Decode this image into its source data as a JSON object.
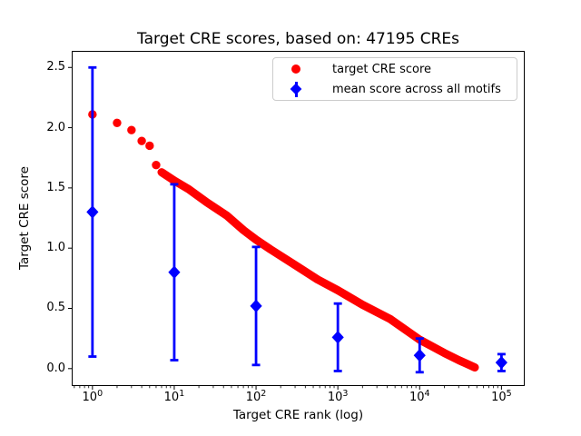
{
  "chart_data": {
    "type": "scatter",
    "title": "Target CRE scores, based on: 47195 CREs",
    "xlabel": "Target CRE rank (log)",
    "ylabel": "Target CRE score",
    "x_scale": "log",
    "grid": false,
    "xlim": [
      0.565,
      190000
    ],
    "ylim": [
      -0.141,
      2.634
    ],
    "x_ticks": [
      {
        "base": "10",
        "exp": "0"
      },
      {
        "base": "10",
        "exp": "1"
      },
      {
        "base": "10",
        "exp": "2"
      },
      {
        "base": "10",
        "exp": "3"
      },
      {
        "base": "10",
        "exp": "4"
      },
      {
        "base": "10",
        "exp": "5"
      }
    ],
    "y_ticks": [
      {
        "value": 0.0,
        "label": "0.0"
      },
      {
        "value": 0.5,
        "label": "0.5"
      },
      {
        "value": 1.0,
        "label": "1.0"
      },
      {
        "value": 1.5,
        "label": "1.5"
      },
      {
        "value": 2.0,
        "label": "2.0"
      },
      {
        "value": 2.5,
        "label": "2.5"
      }
    ],
    "series": [
      {
        "name": "target CRE score",
        "color": "#ff0000",
        "marker": "circle",
        "points": [
          [
            1,
            2.11
          ],
          [
            2,
            2.04
          ],
          [
            3,
            1.98
          ],
          [
            4,
            1.89
          ],
          [
            5,
            1.85
          ],
          [
            6,
            1.69
          ]
        ],
        "dense_band": [
          [
            7,
            1.63
          ],
          [
            10,
            1.56
          ],
          [
            15,
            1.49
          ],
          [
            25,
            1.38
          ],
          [
            44,
            1.27
          ],
          [
            70,
            1.15
          ],
          [
            100,
            1.07
          ],
          [
            150,
            0.99
          ],
          [
            300,
            0.86
          ],
          [
            565,
            0.74
          ],
          [
            1000,
            0.65
          ],
          [
            2000,
            0.53
          ],
          [
            4400,
            0.41
          ],
          [
            10000,
            0.24
          ],
          [
            20000,
            0.13
          ],
          [
            30000,
            0.07
          ],
          [
            47195,
            0.01
          ]
        ]
      },
      {
        "name": "mean score across all motifs",
        "color": "#0000ff",
        "marker": "diamond",
        "x": [
          1,
          10,
          100,
          1000,
          10000,
          100000
        ],
        "mean": [
          1.3,
          0.8,
          0.52,
          0.26,
          0.11,
          0.05
        ],
        "std": [
          1.2,
          0.73,
          0.49,
          0.28,
          0.14,
          0.07
        ]
      }
    ],
    "legend": {
      "position": "upper right",
      "entries": [
        {
          "label": "target CRE score",
          "color": "#ff0000",
          "marker": "circle"
        },
        {
          "label": "mean score across all motifs",
          "color": "#0000ff",
          "marker": "diamond-errorbar"
        }
      ]
    },
    "spine_color": "#000000",
    "tick_color": "#000000"
  }
}
